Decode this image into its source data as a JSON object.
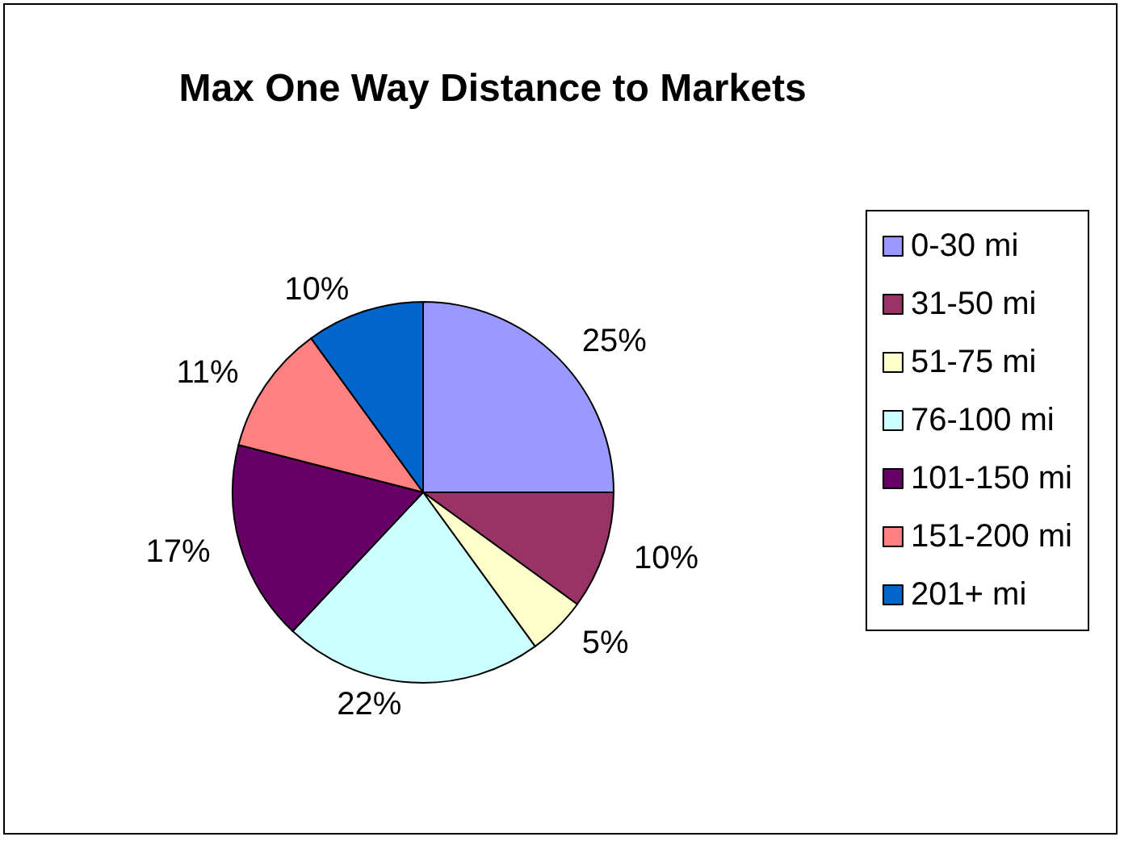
{
  "chart_data": {
    "type": "pie",
    "title": "Max One Way Distance to Markets",
    "categories": [
      "0-30 mi",
      "31-50 mi",
      "51-75 mi",
      "76-100 mi",
      "101-150 mi",
      "151-200 mi",
      "201+ mi"
    ],
    "values": [
      25,
      10,
      5,
      22,
      17,
      11,
      10
    ],
    "value_labels": [
      "25%",
      "10%",
      "5%",
      "22%",
      "17%",
      "11%",
      "10%"
    ],
    "colors": [
      "#9999ff",
      "#993366",
      "#ffffcc",
      "#ccffff",
      "#660066",
      "#ff8080",
      "#0066cc"
    ],
    "legend": "right"
  }
}
